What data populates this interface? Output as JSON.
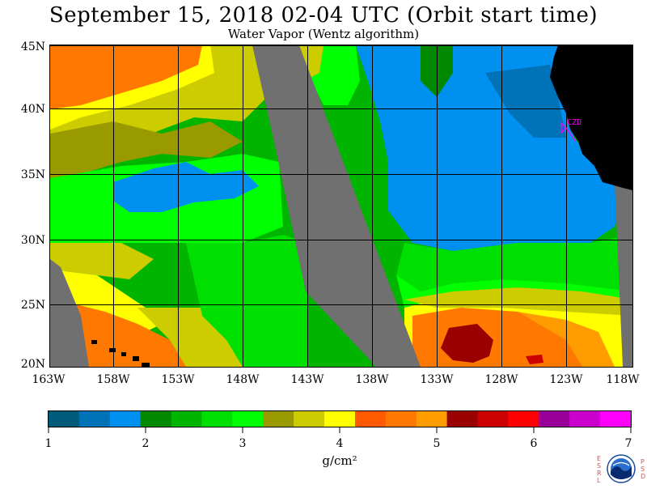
{
  "title": "September 15, 2018  02-04 UTC  (Orbit start time)",
  "subtitle": "Water Vapor (Wentz algorithm)",
  "map": {
    "latitude_labels": [
      "45N",
      "40N",
      "35N",
      "30N",
      "25N",
      "20N"
    ],
    "longitude_labels": [
      "163W",
      "158W",
      "153W",
      "148W",
      "143W",
      "138W",
      "133W",
      "128W",
      "123W",
      "118W"
    ],
    "place_marker": "CZD",
    "colors": {
      "no_data": "#707070",
      "land": "#000000",
      "grid": "#000000",
      "marker": "#ff00ff"
    }
  },
  "colorbar": {
    "ticks": [
      "1",
      "2",
      "3",
      "4",
      "5",
      "6",
      "7"
    ],
    "unit": "g/cm²",
    "colors": [
      "#005a7a",
      "#0072b8",
      "#0090f0",
      "#008800",
      "#00b400",
      "#00e000",
      "#00ff00",
      "#999900",
      "#cccc00",
      "#ffff00",
      "#ff5a00",
      "#ff7800",
      "#ff9c00",
      "#990000",
      "#cc0000",
      "#ff0000",
      "#990099",
      "#cc00cc",
      "#ff00ff"
    ]
  },
  "logo": {
    "left_letters": "ESRL",
    "right_letters": "PSD",
    "name": "noaa-logo"
  }
}
